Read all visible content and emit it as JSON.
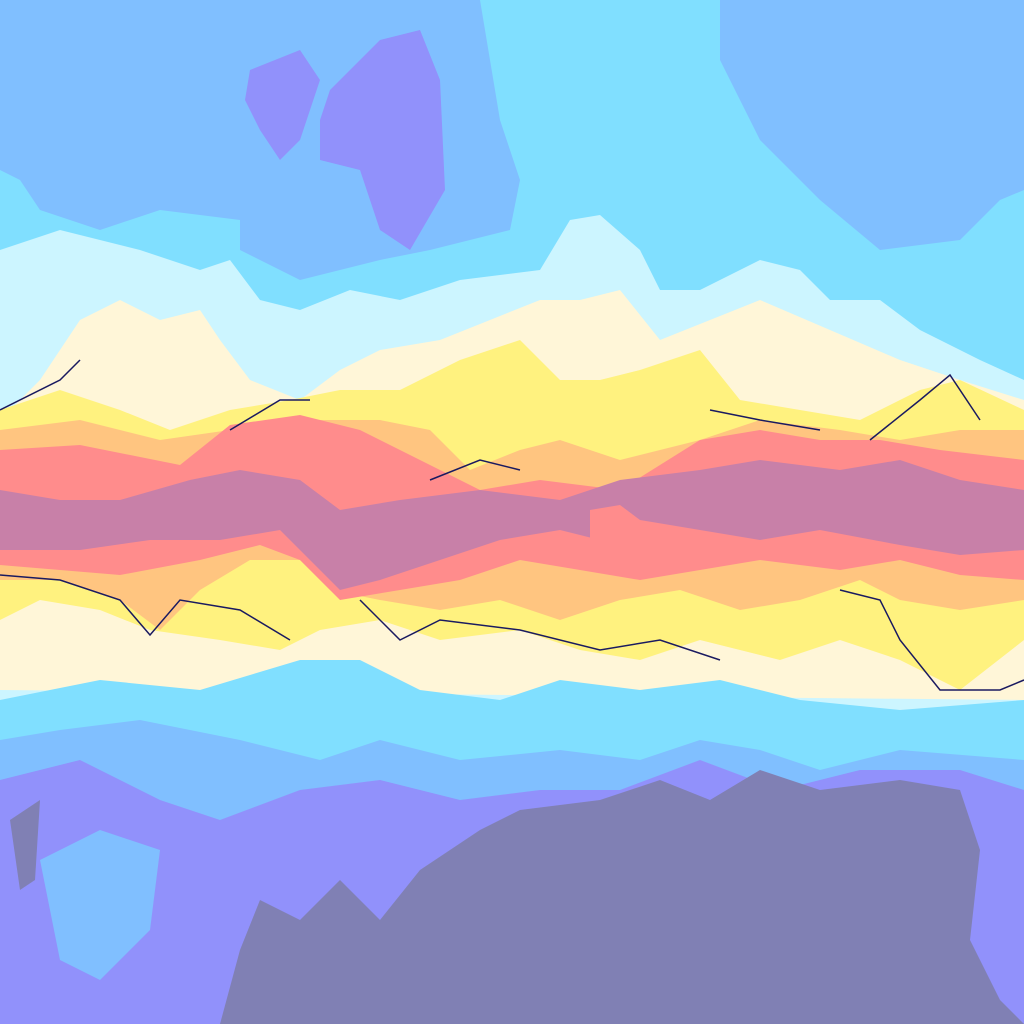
{
  "map": {
    "type": "filled-contour-field",
    "palette": {
      "level_1_coldest": "#8080b4",
      "level_2": "#9191fb",
      "level_3": "#80bfff",
      "level_4": "#80dfff",
      "level_5": "#ccf5ff",
      "level_6": "#fff6d8",
      "level_7": "#fff27f",
      "level_8": "#ffc580",
      "level_9": "#ff8c8c",
      "level_10_warmest": "#c880a8",
      "contour_line": "#1a1a60"
    }
  }
}
